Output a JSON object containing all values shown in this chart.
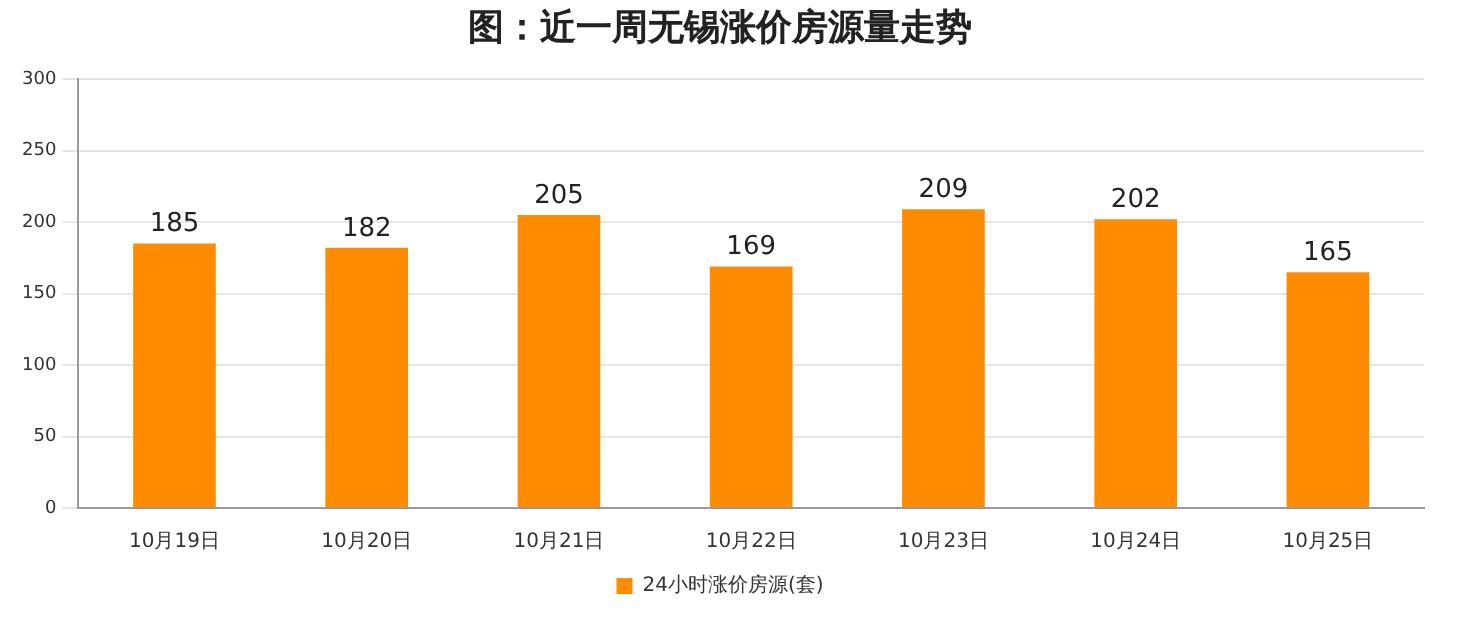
{
  "chart_data": {
    "type": "bar",
    "title": "图：近一周无锡涨价房源量走势",
    "categories": [
      "10月19日",
      "10月20日",
      "10月21日",
      "10月22日",
      "10月23日",
      "10月24日",
      "10月25日"
    ],
    "series": [
      {
        "name": "24小时涨价房源(套)",
        "color": "#ff8c00",
        "values": [
          185,
          182,
          205,
          169,
          209,
          202,
          165
        ]
      }
    ],
    "ylim": [
      0,
      300
    ],
    "yticks": [
      0,
      50,
      100,
      150,
      200,
      250,
      300
    ],
    "grid": "y",
    "legend": "bottom",
    "data_labels": true
  }
}
